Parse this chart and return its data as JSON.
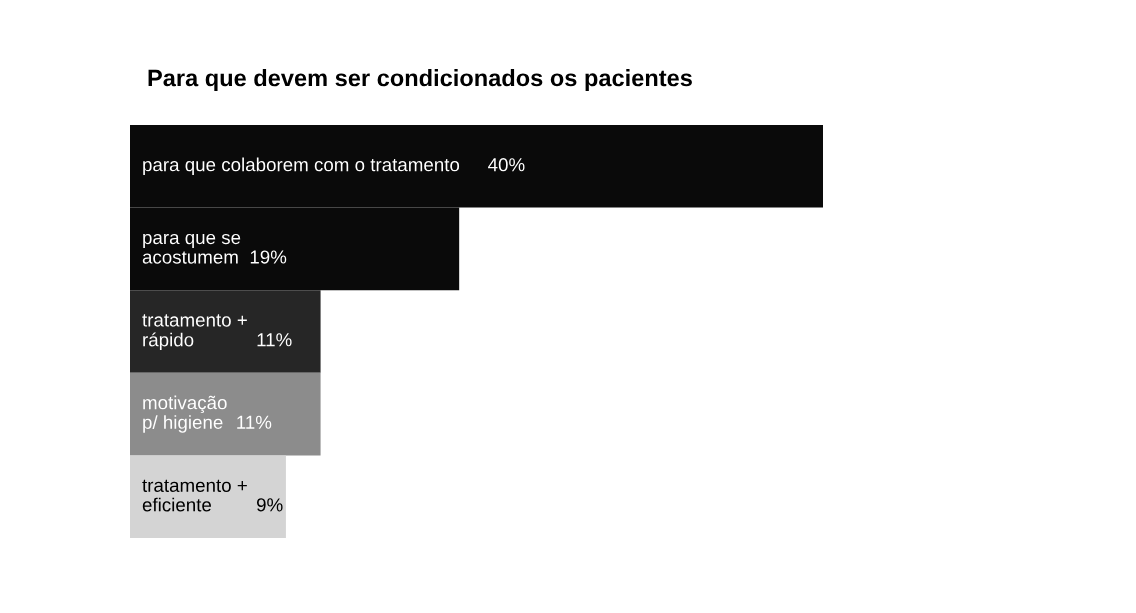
{
  "chart_data": {
    "type": "bar",
    "orientation": "horizontal",
    "title": "Para que devem ser condicionados os pacientes",
    "categories": [
      "para que colaborem com o tratamento",
      "para que se\nacostumem",
      "tratamento +\nrápido",
      "motivação\np/ higiene",
      "tratamento +\neficiente"
    ],
    "values": [
      40,
      19,
      11,
      11,
      9
    ],
    "value_labels": [
      "40%",
      "19%",
      "11%",
      "11%",
      "9%"
    ],
    "colors": [
      "#0a0a0a",
      "#0a0a0a",
      "#262626",
      "#8c8c8c",
      "#d4d4d4"
    ],
    "tick_labels": false
  }
}
